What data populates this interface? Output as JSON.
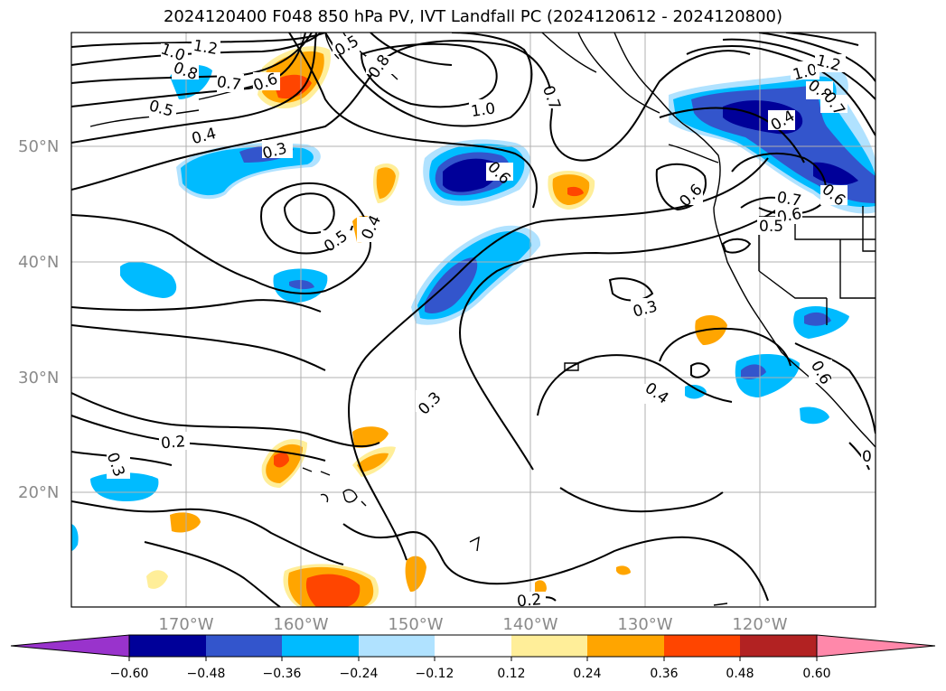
{
  "title": "2024120400 F048 850 hPa PV, IVT Landfall PC (2024120612 - 2024120800)",
  "lat_labels": [
    "50°N",
    "40°N",
    "30°N",
    "20°N"
  ],
  "lon_labels": [
    "170°W",
    "160°W",
    "150°W",
    "140°W",
    "130°W",
    "120°W"
  ],
  "colorbar": {
    "ticks": [
      "−0.60",
      "−0.48",
      "−0.36",
      "−0.24",
      "−0.12",
      "0.12",
      "0.24",
      "0.36",
      "0.48",
      "0.60"
    ],
    "colors": [
      "#9933cc",
      "#000099",
      "#3355cc",
      "#00bbff",
      "#b0e2ff",
      "#ffffff",
      "#ffee99",
      "#ffa500",
      "#ff4500",
      "#b22222",
      "#ff88aa"
    ]
  },
  "contour_labels": [
    "1.2",
    "1.0",
    "0.8",
    "0.7",
    "0.5",
    "0.6",
    "0.5",
    "0.8",
    "1.0",
    "0.7",
    "0.4",
    "0.3",
    "0.6",
    "0.5",
    "0.4",
    "0.6",
    "1.0",
    "1.2",
    "0.8",
    "0.7",
    "0.4",
    "0.6",
    "0.7",
    "0.6",
    "0.5",
    "0.3",
    "0.3",
    "0.4",
    "0.2",
    "0.3",
    "0.2",
    "0.6",
    "0"
  ],
  "colors": {
    "gridline": "#b0b0b0",
    "contour": "#000000",
    "land_outline": "#000000"
  }
}
